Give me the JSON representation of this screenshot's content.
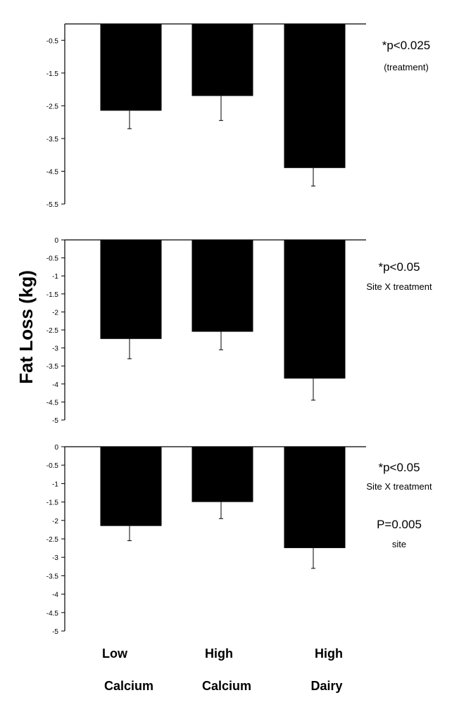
{
  "chart_data": [
    {
      "type": "bar",
      "categories": [
        "Low Calcium",
        "High Calcium",
        "High Dairy"
      ],
      "values": [
        -2.65,
        -2.2,
        -4.4
      ],
      "errors": [
        0.55,
        0.75,
        0.55
      ],
      "ylim": [
        -5.5,
        0
      ],
      "yticks": [
        "-0.5",
        "-1.5",
        "-2.5",
        "-3.5",
        "-4.5",
        "-5.5"
      ],
      "ytick_values": [
        -0.5,
        -1.5,
        -2.5,
        -3.5,
        -4.5,
        -5.5
      ],
      "annotation": [
        "*p<0.025",
        "(treatment)"
      ]
    },
    {
      "type": "bar",
      "categories": [
        "Low Calcium",
        "High Calcium",
        "High Dairy"
      ],
      "values": [
        -2.75,
        -2.55,
        -3.85
      ],
      "errors": [
        0.55,
        0.5,
        0.6
      ],
      "ylim": [
        -5,
        0
      ],
      "yticks": [
        "0",
        "-0.5",
        "-1",
        "-1.5",
        "-2",
        "-2.5",
        "-3",
        "-3.5",
        "-4",
        "-4.5",
        "-5"
      ],
      "ytick_values": [
        0,
        -0.5,
        -1,
        -1.5,
        -2,
        -2.5,
        -3,
        -3.5,
        -4,
        -4.5,
        -5
      ],
      "annotation": [
        "*p<0.05",
        "Site X treatment"
      ]
    },
    {
      "type": "bar",
      "categories": [
        "Low Calcium",
        "High Calcium",
        "High Dairy"
      ],
      "values": [
        -2.15,
        -1.5,
        -2.75
      ],
      "errors": [
        0.4,
        0.45,
        0.55
      ],
      "ylim": [
        -5,
        0
      ],
      "yticks": [
        "0",
        "-0.5",
        "-1",
        "-1.5",
        "-2",
        "-2.5",
        "-3",
        "-3.5",
        "-4",
        "-4.5",
        "-5"
      ],
      "ytick_values": [
        0,
        -0.5,
        -1,
        -1.5,
        -2,
        -2.5,
        -3,
        -3.5,
        -4,
        -4.5,
        -5
      ],
      "annotation": [
        "*p<0.05",
        "Site X treatment",
        "P=0.005",
        "site"
      ]
    }
  ],
  "ylabel": "Fat Loss (kg)",
  "xlabels": [
    [
      "Low",
      "Calcium"
    ],
    [
      "High",
      "Calcium"
    ],
    [
      "High",
      "Dairy"
    ]
  ],
  "colors": {
    "bar": "#000000",
    "axis": "#000000"
  }
}
